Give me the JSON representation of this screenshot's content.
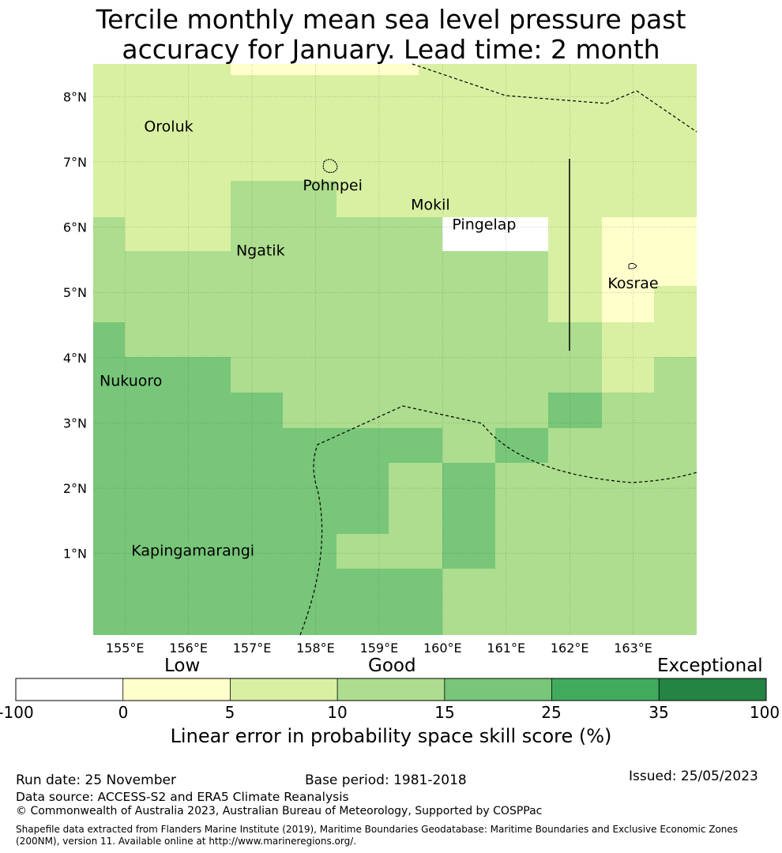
{
  "title_line1": "Tercile monthly mean sea level pressure past",
  "title_line2": "accuracy for January. Lead time: 2 month",
  "map": {
    "lon_range": [
      154.5,
      164.0
    ],
    "lat_range": [
      -0.25,
      8.5
    ],
    "lon_ticks": [
      "155°E",
      "156°E",
      "157°E",
      "158°E",
      "159°E",
      "160°E",
      "161°E",
      "162°E",
      "163°E"
    ],
    "lat_ticks": [
      "1°N",
      "2°N",
      "3°N",
      "4°N",
      "5°N",
      "6°N",
      "7°N",
      "8°N"
    ],
    "places": [
      {
        "name": "Oroluk",
        "lon": 155.3,
        "lat": 7.55
      },
      {
        "name": "Pohnpei",
        "lon": 157.8,
        "lat": 6.65
      },
      {
        "name": "Mokil",
        "lon": 159.5,
        "lat": 6.35
      },
      {
        "name": "Pingelap",
        "lon": 160.15,
        "lat": 6.05
      },
      {
        "name": "Ngatik",
        "lon": 156.75,
        "lat": 5.65
      },
      {
        "name": "Kosrae",
        "lon": 162.6,
        "lat": 5.15
      },
      {
        "name": "Nukuoro",
        "lon": 154.6,
        "lat": 3.65
      },
      {
        "name": "Kapingamarangi",
        "lon": 155.1,
        "lat": 1.05
      }
    ],
    "skill_colors": {
      "c1": "#ffffcc",
      "c2": "#d9f0a3",
      "c3": "#addd8e",
      "c4": "#78c679",
      "c5": "#41ab5d",
      "c6": "#238443"
    }
  },
  "colorbar": {
    "category_labels": [
      "Low",
      "Good",
      "Exceptional"
    ],
    "ticks": [
      "-100",
      "0",
      "5",
      "10",
      "15",
      "25",
      "35",
      "100"
    ],
    "colors": [
      "#ffffff",
      "#ffffcc",
      "#d9f0a3",
      "#addd8e",
      "#78c679",
      "#41ab5d",
      "#238443"
    ],
    "label": "Linear error in probability space skill score (%)"
  },
  "footer": {
    "run_date": "Run date: 25 November",
    "base_period": "Base period: 1981-2018",
    "issued": "Issued: 25/05/2023",
    "data_source": "Data source: ACCESS-S2 and ERA5 Climate Reanalysis",
    "copyright": "© Commonwealth of Australia 2023, Australian Bureau of Meteorology, Supported by COSPPac",
    "shapefile": "Shapefile data extracted from Flanders Marine Institute (2019), Maritime Boundaries Geodatabase: Maritime Boundaries and Exclusive Economic Zones (200NM), version 11. Available online at http://www.marineregions.org/."
  }
}
